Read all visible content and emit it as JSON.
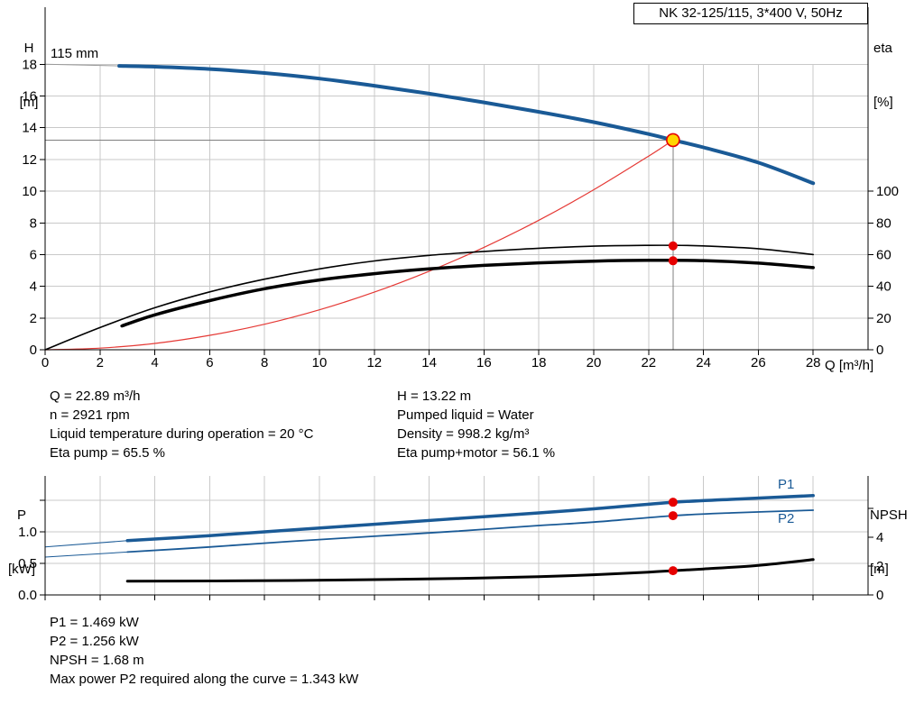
{
  "report": {
    "info_left": [
      "Q = 22.89 m³/h",
      "n = 2921 rpm",
      "Liquid temperature during operation = 20 °C",
      "Eta pump = 65.5 %"
    ],
    "info_right": [
      "H = 13.22 m",
      "Pumped liquid = Water",
      "Density = 998.2 kg/m³",
      "Eta pump+motor = 56.1 %"
    ],
    "footer": [
      "P1 = 1.469 kW",
      "P2 = 1.256 kW",
      "NPSH = 1.68 m",
      "Max power P2 required along the curve = 1.343 kW"
    ]
  },
  "colors": {
    "curve_blue": "#1a5a96",
    "curve_black": "#000000",
    "system_red": "#e53935",
    "dot_red": "#e60000",
    "duty_yellow": "#ffd500",
    "grid": "#c9c9c9",
    "guide_gray": "#7f7f7f",
    "lead_gray": "#9a9a9a"
  },
  "chart_data": [
    {
      "type": "line",
      "name": "hq-performance-chart",
      "title": "NK 32-125/115, 3*400 V, 50Hz",
      "x_axis": {
        "label": "Q [m³/h]",
        "min": 0,
        "max": 30,
        "ticks": [
          0,
          2,
          4,
          6,
          8,
          10,
          12,
          14,
          16,
          18,
          20,
          22,
          24,
          26,
          28
        ]
      },
      "y_axis_left": {
        "name": "H",
        "unit": "[m]",
        "min": 0,
        "max": 21.6,
        "ticks": [
          0,
          2,
          4,
          6,
          8,
          10,
          12,
          14,
          16,
          18
        ]
      },
      "y_axis_right": {
        "name": "eta",
        "unit": "[%]",
        "min": 0,
        "max": 216,
        "ticks": [
          0,
          20,
          40,
          60,
          80,
          100
        ]
      },
      "grid": true,
      "grid_top_left": 18,
      "annotations": [
        {
          "text": "115 mm",
          "x": 56,
          "y": 50
        }
      ],
      "duty_point": {
        "q": 22.89,
        "h": 13.22
      },
      "series": [
        {
          "name": "pump-curve-lead",
          "axis": "left",
          "color": "#9a9a9a",
          "width": 1,
          "points": [
            [
              0,
              18.0
            ],
            [
              2.7,
              17.9
            ]
          ]
        },
        {
          "name": "pump-curve-115mm",
          "axis": "left",
          "color": "#1a5a96",
          "width": 4,
          "points": [
            [
              2.7,
              17.9
            ],
            [
              4,
              17.85
            ],
            [
              6,
              17.7
            ],
            [
              8,
              17.45
            ],
            [
              10,
              17.1
            ],
            [
              12,
              16.65
            ],
            [
              14,
              16.15
            ],
            [
              16,
              15.6
            ],
            [
              18,
              15.0
            ],
            [
              20,
              14.35
            ],
            [
              22,
              13.6
            ],
            [
              22.89,
              13.22
            ],
            [
              24,
              12.76
            ],
            [
              26,
              11.8
            ],
            [
              28,
              10.5
            ]
          ]
        },
        {
          "name": "system-resistance-curve",
          "axis": "left",
          "color": "#e53935",
          "width": 1.2,
          "points": [
            [
              0,
              0
            ],
            [
              2,
              0.1
            ],
            [
              4,
              0.4
            ],
            [
              6,
              0.91
            ],
            [
              8,
              1.61
            ],
            [
              10,
              2.52
            ],
            [
              12,
              3.63
            ],
            [
              14,
              4.95
            ],
            [
              16,
              6.46
            ],
            [
              18,
              8.17
            ],
            [
              20,
              10.09
            ],
            [
              22,
              12.21
            ],
            [
              22.89,
              13.22
            ]
          ]
        },
        {
          "name": "eta-pump-curve",
          "axis": "right",
          "color": "#000000",
          "width": 1.6,
          "points": [
            [
              0,
              0
            ],
            [
              2,
              14
            ],
            [
              4,
              26.5
            ],
            [
              6,
              36.5
            ],
            [
              8,
              44.5
            ],
            [
              10,
              51
            ],
            [
              12,
              56
            ],
            [
              14,
              59.5
            ],
            [
              16,
              62
            ],
            [
              18,
              64
            ],
            [
              20,
              65.3
            ],
            [
              22,
              65.8
            ],
            [
              23,
              65.8
            ],
            [
              24,
              65.5
            ],
            [
              26,
              63.7
            ],
            [
              28,
              60
            ]
          ]
        },
        {
          "name": "eta-pump-motor-curve",
          "axis": "right",
          "color": "#000000",
          "width": 3.5,
          "points": [
            [
              2.8,
              15
            ],
            [
              4,
              22
            ],
            [
              6,
              31
            ],
            [
              8,
              38.5
            ],
            [
              10,
              44
            ],
            [
              12,
              48
            ],
            [
              14,
              51
            ],
            [
              16,
              53.2
            ],
            [
              18,
              54.8
            ],
            [
              20,
              55.9
            ],
            [
              22,
              56.4
            ],
            [
              24,
              56.2
            ],
            [
              26,
              54.6
            ],
            [
              28,
              51.8
            ]
          ]
        }
      ],
      "markers": [
        {
          "q": 22.89,
          "v": 65.5,
          "axis": "right",
          "style": "dot"
        },
        {
          "q": 22.89,
          "v": 56.1,
          "axis": "right",
          "style": "dot"
        },
        {
          "q": 22.89,
          "v": 13.22,
          "axis": "left",
          "style": "duty"
        }
      ]
    },
    {
      "type": "line",
      "name": "power-npsh-chart",
      "x_axis": {
        "label": "",
        "min": 0,
        "max": 30,
        "show_tick_labels": false,
        "ticks": [
          0,
          2,
          4,
          6,
          8,
          10,
          12,
          14,
          16,
          18,
          20,
          22,
          24,
          26,
          28
        ]
      },
      "y_axis_left": {
        "name": "P",
        "unit": "[kW]",
        "min": 0,
        "max": 1.886,
        "ticks": [
          0,
          0.5,
          1
        ],
        "tick_labels": [
          "0.0",
          "0.5",
          "1.0"
        ],
        "minor_ticks": [
          1.5
        ]
      },
      "y_axis_right": {
        "name": "NPSH",
        "unit": "[m]",
        "min": 0,
        "max": 8.25,
        "ticks": [
          0,
          2,
          4
        ],
        "tick_labels": [
          "0",
          "2",
          "4"
        ],
        "minor_ticks": [
          6
        ]
      },
      "grid": true,
      "annotations": [
        {
          "text": "P1"
        },
        {
          "text": "P2"
        }
      ],
      "series": [
        {
          "name": "p1-curve-lead",
          "axis": "left",
          "color": "#1a5a96",
          "width": 1,
          "points": [
            [
              0,
              0.76
            ],
            [
              3,
              0.86
            ]
          ]
        },
        {
          "name": "p2-curve-lead",
          "axis": "left",
          "color": "#1a5a96",
          "width": 1,
          "points": [
            [
              0,
              0.6
            ],
            [
              3,
              0.68
            ]
          ]
        },
        {
          "name": "p1-curve",
          "axis": "left",
          "color": "#1a5a96",
          "width": 3.5,
          "points": [
            [
              3,
              0.86
            ],
            [
              6,
              0.94
            ],
            [
              9,
              1.03
            ],
            [
              12,
              1.12
            ],
            [
              15,
              1.21
            ],
            [
              18,
              1.3
            ],
            [
              20,
              1.365
            ],
            [
              22.89,
              1.469
            ],
            [
              25,
              1.515
            ],
            [
              28,
              1.575
            ]
          ]
        },
        {
          "name": "p2-curve",
          "axis": "left",
          "color": "#1a5a96",
          "width": 1.8,
          "points": [
            [
              3,
              0.68
            ],
            [
              6,
              0.76
            ],
            [
              9,
              0.85
            ],
            [
              12,
              0.93
            ],
            [
              15,
              1.01
            ],
            [
              18,
              1.1
            ],
            [
              20,
              1.155
            ],
            [
              22.89,
              1.256
            ],
            [
              25,
              1.3
            ],
            [
              28,
              1.343
            ]
          ]
        },
        {
          "name": "npsh-curve",
          "axis": "right",
          "color": "#000000",
          "width": 3,
          "points": [
            [
              3,
              0.95
            ],
            [
              6,
              0.97
            ],
            [
              9,
              1.0
            ],
            [
              12,
              1.06
            ],
            [
              15,
              1.14
            ],
            [
              18,
              1.27
            ],
            [
              20,
              1.4
            ],
            [
              22,
              1.58
            ],
            [
              22.89,
              1.68
            ],
            [
              24,
              1.8
            ],
            [
              26,
              2.05
            ],
            [
              28,
              2.45
            ]
          ]
        }
      ],
      "markers": [
        {
          "q": 22.89,
          "v": 1.469,
          "axis": "left",
          "style": "dot"
        },
        {
          "q": 22.89,
          "v": 1.256,
          "axis": "left",
          "style": "dot"
        },
        {
          "q": 22.89,
          "v": 1.68,
          "axis": "right",
          "style": "dot"
        }
      ]
    }
  ]
}
